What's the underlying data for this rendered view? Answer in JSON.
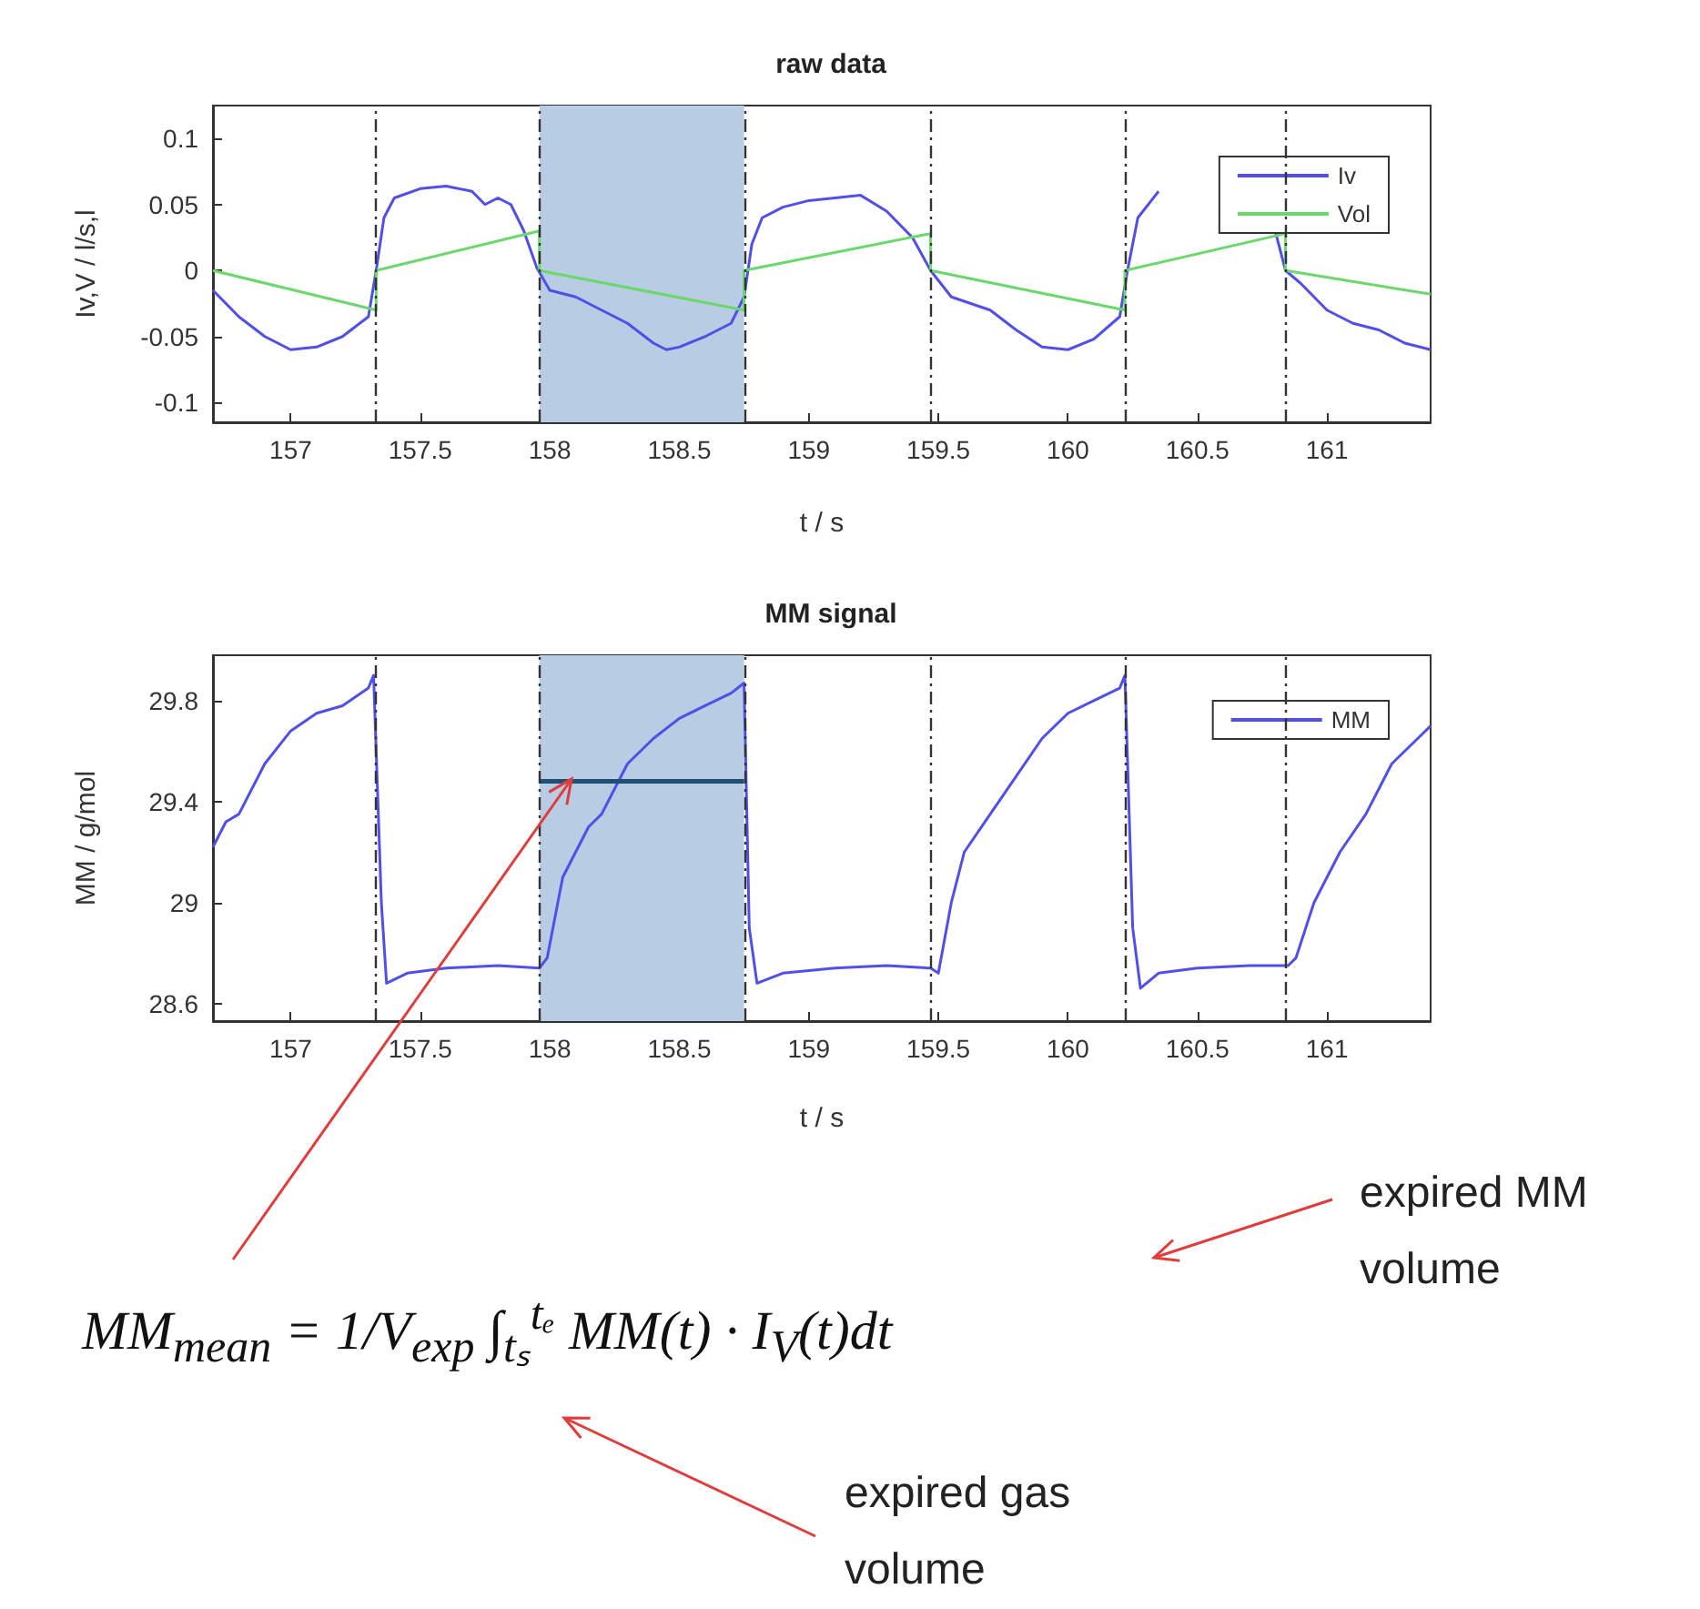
{
  "chart_data": [
    {
      "type": "line",
      "title": "raw data",
      "xlabel": "t / s",
      "ylabel": "Iv,V / l/s,l",
      "xlim": [
        156.7,
        161.4
      ],
      "xticks": [
        157,
        157.5,
        158,
        158.5,
        159,
        159.5,
        160,
        160.5,
        161
      ],
      "ylim": [
        -0.115,
        0.125
      ],
      "yticks": [
        -0.1,
        -0.05,
        0,
        0.05,
        0.1
      ],
      "grid": false,
      "legend": "top right",
      "marker": "none",
      "bands": [
        {
          "axis": "x",
          "from": 157.96,
          "to": 158.75,
          "color": "#b8cce4"
        }
      ],
      "ref_lines": [
        {
          "axis": "x",
          "value": 157.33,
          "color": "#333333",
          "line_style": "dashed"
        },
        {
          "axis": "x",
          "value": 157.96,
          "color": "#333333",
          "line_style": "dashed"
        },
        {
          "axis": "x",
          "value": 158.75,
          "color": "#333333",
          "line_style": "dashed"
        },
        {
          "axis": "x",
          "value": 159.47,
          "color": "#333333",
          "line_style": "dashed"
        },
        {
          "axis": "x",
          "value": 160.22,
          "color": "#333333",
          "line_style": "dashed"
        },
        {
          "axis": "x",
          "value": 160.84,
          "color": "#333333",
          "line_style": "dashed"
        }
      ],
      "series": [
        {
          "name": "Iv",
          "color": "#5050e8",
          "x": [
            156.7,
            156.8,
            156.9,
            157.0,
            157.1,
            157.2,
            157.3,
            157.33,
            157.36,
            157.4,
            157.5,
            157.6,
            157.7,
            157.75,
            157.8,
            157.85,
            157.9,
            157.95,
            158.0,
            158.1,
            158.2,
            158.3,
            158.4,
            158.45,
            158.5,
            158.6,
            158.7,
            158.75,
            158.78,
            158.82,
            158.9,
            159.0,
            159.1,
            159.2,
            159.3,
            159.4,
            159.47,
            159.55,
            159.7,
            159.8,
            159.9,
            160.0,
            160.1,
            160.2,
            160.23,
            160.27,
            160.35,
            160.45,
            160.55,
            160.65,
            160.75,
            160.8,
            160.84,
            160.9,
            161.0,
            161.1,
            161.2,
            161.3,
            161.4
          ],
          "values": [
            -0.015,
            -0.035,
            -0.05,
            -0.06,
            -0.058,
            -0.05,
            -0.035,
            0.0,
            0.04,
            0.055,
            0.062,
            0.064,
            0.06,
            0.05,
            0.055,
            0.05,
            0.03,
            0.002,
            -0.015,
            -0.02,
            -0.03,
            -0.04,
            -0.055,
            -0.06,
            -0.058,
            -0.05,
            -0.04,
            -0.02,
            0.02,
            0.04,
            0.048,
            0.053,
            0.055,
            0.057,
            0.045,
            0.025,
            0.0,
            -0.02,
            -0.03,
            -0.045,
            -0.058,
            -0.06,
            -0.052,
            -0.035,
            0.0,
            0.04,
            0.06,
            null,
            null,
            null,
            null,
            0.03,
            0.0,
            -0.01,
            -0.03,
            -0.04,
            -0.045,
            -0.055,
            -0.06
          ]
        },
        {
          "name": "Vol",
          "color": "#6ad86a",
          "x": [
            156.7,
            157.33,
            157.33,
            157.96,
            157.96,
            158.75,
            158.75,
            159.47,
            159.47,
            160.22,
            160.22,
            160.84,
            160.84,
            161.4
          ],
          "values": [
            0.0,
            -0.03,
            0.0,
            0.03,
            0.0,
            -0.03,
            0.0,
            0.028,
            0.0,
            -0.03,
            0.0,
            0.028,
            0.0,
            -0.018
          ]
        }
      ]
    },
    {
      "type": "line",
      "title": "MM signal",
      "xlabel": "t / s",
      "ylabel": "MM / g/mol",
      "xlim": [
        156.7,
        161.4
      ],
      "xticks": [
        157,
        157.5,
        158,
        158.5,
        159,
        159.5,
        160,
        160.5,
        161
      ],
      "ylim": [
        28.53,
        29.98
      ],
      "yticks": [
        28.6,
        29,
        29.4,
        29.8
      ],
      "grid": false,
      "legend": "top right",
      "marker": "none",
      "bands": [
        {
          "axis": "x",
          "from": 157.96,
          "to": 158.75,
          "color": "#b8cce4"
        }
      ],
      "ref_lines": [
        {
          "axis": "x",
          "value": 157.33,
          "color": "#333333",
          "line_style": "dashed"
        },
        {
          "axis": "x",
          "value": 157.96,
          "color": "#333333",
          "line_style": "dashed"
        },
        {
          "axis": "x",
          "value": 158.75,
          "color": "#333333",
          "line_style": "dashed"
        },
        {
          "axis": "x",
          "value": 159.47,
          "color": "#333333",
          "line_style": "dashed"
        },
        {
          "axis": "x",
          "value": 160.22,
          "color": "#333333",
          "line_style": "dashed"
        },
        {
          "axis": "x",
          "value": 160.84,
          "color": "#333333",
          "line_style": "dashed"
        }
      ],
      "annotations": [
        "MM$_{mean}$ = 1/V$_{exp}$ ∫$_{tₛ}$$^{tₑ}$ MM(t) · I$_{V}$(t)dt",
        "expired MM volume",
        "expired gas volume"
      ],
      "series": [
        {
          "name": "MM",
          "color": "#5050e8",
          "x": [
            156.7,
            156.75,
            156.8,
            156.9,
            157.0,
            157.1,
            157.2,
            157.3,
            157.32,
            157.35,
            157.37,
            157.45,
            157.6,
            157.8,
            157.96,
            157.99,
            158.05,
            158.15,
            158.2,
            158.3,
            158.4,
            158.5,
            158.6,
            158.7,
            158.75,
            158.77,
            158.8,
            158.9,
            159.1,
            159.3,
            159.47,
            159.5,
            159.55,
            159.6,
            159.7,
            159.8,
            159.9,
            160.0,
            160.1,
            160.2,
            160.22,
            160.25,
            160.28,
            160.35,
            160.5,
            160.7,
            160.85,
            160.88,
            160.95,
            161.05,
            161.15,
            161.25,
            161.35,
            161.4
          ],
          "values": [
            29.22,
            29.32,
            29.35,
            29.55,
            29.68,
            29.75,
            29.78,
            29.85,
            29.9,
            29.0,
            28.68,
            28.72,
            28.74,
            28.75,
            28.74,
            28.78,
            29.1,
            29.3,
            29.35,
            29.55,
            29.65,
            29.73,
            29.78,
            29.83,
            29.87,
            28.9,
            28.68,
            28.72,
            28.74,
            28.75,
            28.74,
            28.72,
            29.0,
            29.2,
            29.35,
            29.5,
            29.65,
            29.75,
            29.8,
            29.85,
            29.9,
            28.9,
            28.66,
            28.72,
            28.74,
            28.75,
            28.75,
            28.78,
            29.0,
            29.2,
            29.35,
            29.55,
            29.65,
            29.7
          ]
        },
        {
          "color": "#1f4e79",
          "x": [
            157.96,
            158.75
          ],
          "values": [
            29.48,
            29.48
          ]
        }
      ]
    }
  ]
}
